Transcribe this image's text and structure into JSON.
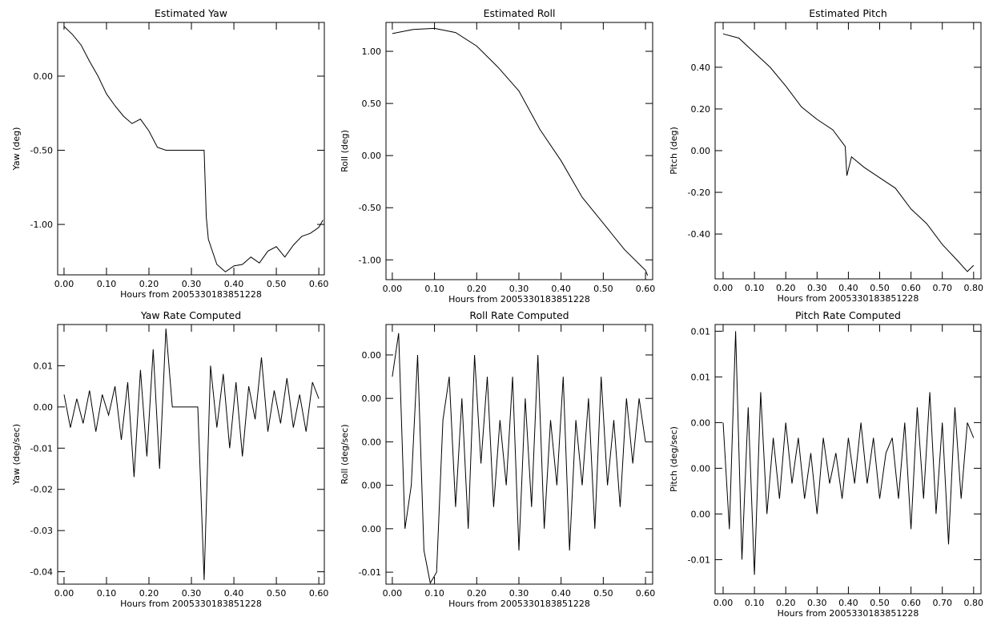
{
  "chart_data": [
    {
      "type": "line",
      "title": "Estimated Yaw",
      "x_label": "Hours from 2005330183851228",
      "y_label": "Yaw (deg)",
      "color": "#000000",
      "x": [
        0,
        0.02,
        0.04,
        0.06,
        0.08,
        0.1,
        0.12,
        0.14,
        0.16,
        0.18,
        0.2,
        0.22,
        0.24,
        0.26,
        0.3,
        0.33,
        0.335,
        0.34,
        0.36,
        0.38,
        0.4,
        0.42,
        0.44,
        0.46,
        0.48,
        0.5,
        0.52,
        0.54,
        0.56,
        0.58,
        0.6,
        0.61
      ],
      "values": [
        0.335,
        0.28,
        0.21,
        0.1,
        0.0,
        -0.12,
        -0.2,
        -0.27,
        -0.32,
        -0.29,
        -0.37,
        -0.48,
        -0.5,
        -0.5,
        -0.5,
        -0.5,
        -0.95,
        -1.1,
        -1.27,
        -1.32,
        -1.28,
        -1.27,
        -1.22,
        -1.26,
        -1.18,
        -1.15,
        -1.22,
        -1.14,
        -1.08,
        -1.06,
        -1.02,
        -0.97
      ],
      "xlim": [
        -0.015,
        0.613
      ],
      "ylim": [
        -1.34,
        0.362
      ],
      "xticks": [
        {
          "value": 0,
          "label": "0.00"
        },
        {
          "value": 0.1,
          "label": "0.10"
        },
        {
          "value": 0.2,
          "label": "0.20"
        },
        {
          "value": 0.3,
          "label": "0.30"
        },
        {
          "value": 0.4,
          "label": "0.40"
        },
        {
          "value": 0.5,
          "label": "0.50"
        },
        {
          "value": 0.6,
          "label": "0.60"
        }
      ],
      "yticks": [
        {
          "value": -1,
          "label": "-1.00"
        },
        {
          "value": -0.5,
          "label": "-0.50"
        },
        {
          "value": 0,
          "label": "0.00"
        }
      ]
    },
    {
      "type": "line",
      "title": "Estimated Roll",
      "x_label": "Hours from 2005330183851228",
      "y_label": "Roll (deg)",
      "color": "#000000",
      "x": [
        0,
        0.05,
        0.1,
        0.15,
        0.2,
        0.25,
        0.3,
        0.35,
        0.4,
        0.45,
        0.5,
        0.55,
        0.6,
        0.605
      ],
      "values": [
        1.17,
        1.21,
        1.22,
        1.18,
        1.05,
        0.85,
        0.62,
        0.25,
        -0.05,
        -0.4,
        -0.65,
        -0.9,
        -1.1,
        -1.15
      ],
      "xlim": [
        -0.015,
        0.617
      ],
      "ylim": [
        -1.19,
        1.277
      ],
      "xticks": [
        {
          "value": 0,
          "label": "0.00"
        },
        {
          "value": 0.1,
          "label": "0.10"
        },
        {
          "value": 0.2,
          "label": "0.20"
        },
        {
          "value": 0.3,
          "label": "0.30"
        },
        {
          "value": 0.4,
          "label": "0.40"
        },
        {
          "value": 0.5,
          "label": "0.50"
        },
        {
          "value": 0.6,
          "label": "0.60"
        }
      ],
      "yticks": [
        {
          "value": -1,
          "label": "-1.00"
        },
        {
          "value": -0.5,
          "label": "-0.50"
        },
        {
          "value": 0,
          "label": "0.00"
        },
        {
          "value": 0.5,
          "label": "0.50"
        },
        {
          "value": 1,
          "label": "1.00"
        }
      ]
    },
    {
      "type": "line",
      "title": "Estimated Pitch",
      "x_label": "Hours from 2005330183851228",
      "y_label": "Pitch (deg)",
      "color": "#000000",
      "x": [
        0,
        0.05,
        0.1,
        0.15,
        0.2,
        0.25,
        0.3,
        0.35,
        0.39,
        0.395,
        0.41,
        0.45,
        0.5,
        0.55,
        0.6,
        0.65,
        0.7,
        0.75,
        0.78,
        0.8
      ],
      "values": [
        0.56,
        0.54,
        0.47,
        0.4,
        0.31,
        0.21,
        0.15,
        0.1,
        0.02,
        -0.12,
        -0.03,
        -0.08,
        -0.13,
        -0.18,
        -0.28,
        -0.35,
        -0.45,
        -0.53,
        -0.58,
        -0.55
      ],
      "xlim": [
        -0.0256,
        0.8235
      ],
      "ylim": [
        -0.615,
        0.615
      ],
      "xticks": [
        {
          "value": 0,
          "label": "0.00"
        },
        {
          "value": 0.1,
          "label": "0.10"
        },
        {
          "value": 0.2,
          "label": "0.20"
        },
        {
          "value": 0.3,
          "label": "0.30"
        },
        {
          "value": 0.4,
          "label": "0.40"
        },
        {
          "value": 0.5,
          "label": "0.50"
        },
        {
          "value": 0.6,
          "label": "0.60"
        },
        {
          "value": 0.7,
          "label": "0.70"
        },
        {
          "value": 0.8,
          "label": "0.80"
        }
      ],
      "yticks": [
        {
          "value": -0.4,
          "label": "-0.40"
        },
        {
          "value": -0.2,
          "label": "-0.20"
        },
        {
          "value": 0,
          "label": "0.00"
        },
        {
          "value": 0.2,
          "label": "0.20"
        },
        {
          "value": 0.4,
          "label": "0.40"
        }
      ]
    },
    {
      "type": "line",
      "title": "Yaw Rate Computed",
      "x_label": "Hours from 2005330183851228",
      "y_label": "Yaw (deg/sec)",
      "color": "#000000",
      "x": [
        0,
        0.015,
        0.03,
        0.045,
        0.06,
        0.075,
        0.09,
        0.105,
        0.12,
        0.135,
        0.15,
        0.165,
        0.18,
        0.195,
        0.21,
        0.225,
        0.24,
        0.255,
        0.27,
        0.285,
        0.3,
        0.315,
        0.33,
        0.345,
        0.36,
        0.375,
        0.39,
        0.405,
        0.42,
        0.435,
        0.45,
        0.465,
        0.48,
        0.495,
        0.51,
        0.525,
        0.54,
        0.555,
        0.57,
        0.585,
        0.6
      ],
      "values": [
        0.003,
        -0.005,
        0.002,
        -0.004,
        0.004,
        -0.006,
        0.003,
        -0.002,
        0.005,
        -0.008,
        0.006,
        -0.017,
        0.009,
        -0.012,
        0.014,
        -0.015,
        0.019,
        0,
        0,
        0,
        0,
        0,
        -0.042,
        0.01,
        -0.005,
        0.008,
        -0.01,
        0.006,
        -0.012,
        0.005,
        -0.003,
        0.012,
        -0.006,
        0.004,
        -0.004,
        0.007,
        -0.005,
        0.003,
        -0.006,
        0.006,
        0.002
      ],
      "xlim": [
        -0.015,
        0.613
      ],
      "ylim": [
        -0.043,
        0.02
      ],
      "xticks": [
        {
          "value": 0,
          "label": "0.00"
        },
        {
          "value": 0.1,
          "label": "0.10"
        },
        {
          "value": 0.2,
          "label": "0.20"
        },
        {
          "value": 0.3,
          "label": "0.30"
        },
        {
          "value": 0.4,
          "label": "0.40"
        },
        {
          "value": 0.5,
          "label": "0.50"
        },
        {
          "value": 0.6,
          "label": "0.60"
        }
      ],
      "yticks": [
        {
          "value": -0.04,
          "label": "-0.04"
        },
        {
          "value": -0.03,
          "label": "-0.03"
        },
        {
          "value": -0.02,
          "label": "-0.02"
        },
        {
          "value": -0.01,
          "label": "-0.01"
        },
        {
          "value": 0,
          "label": "0.00"
        },
        {
          "value": 0.01,
          "label": "0.01"
        }
      ]
    },
    {
      "type": "line",
      "title": "Roll Rate Computed",
      "x_label": "Hours from 2005330183851228",
      "y_label": "Roll (deg/sec)",
      "color": "#000000",
      "x": [
        0,
        0.015,
        0.03,
        0.045,
        0.06,
        0.075,
        0.09,
        0.105,
        0.12,
        0.135,
        0.15,
        0.165,
        0.18,
        0.195,
        0.21,
        0.225,
        0.24,
        0.255,
        0.27,
        0.285,
        0.3,
        0.315,
        0.33,
        0.345,
        0.36,
        0.375,
        0.39,
        0.405,
        0.42,
        0.435,
        0.45,
        0.465,
        0.48,
        0.495,
        0.51,
        0.525,
        0.54,
        0.555,
        0.57,
        0.585,
        0.6
      ],
      "values": [
        0.003,
        0.005,
        -0.004,
        -0.002,
        0.004,
        -0.005,
        -0.0065,
        -0.006,
        0.001,
        0.003,
        -0.003,
        0.002,
        -0.004,
        0.004,
        -0.001,
        0.003,
        -0.003,
        0.001,
        -0.002,
        0.003,
        -0.005,
        0.002,
        -0.003,
        0.004,
        -0.004,
        0.001,
        -0.002,
        0.003,
        -0.005,
        0.001,
        -0.002,
        0.002,
        -0.004,
        0.003,
        -0.002,
        0.001,
        -0.003,
        0.002,
        -0.001,
        0.002,
        0.0
      ],
      "xlim": [
        -0.015,
        0.617
      ],
      "ylim": [
        -0.00655,
        0.0054
      ],
      "xticks": [
        {
          "value": 0,
          "label": "0.00"
        },
        {
          "value": 0.1,
          "label": "0.10"
        },
        {
          "value": 0.2,
          "label": "0.20"
        },
        {
          "value": 0.3,
          "label": "0.30"
        },
        {
          "value": 0.4,
          "label": "0.40"
        },
        {
          "value": 0.5,
          "label": "0.50"
        },
        {
          "value": 0.6,
          "label": "0.60"
        }
      ],
      "yticks": [
        {
          "value": -0.006,
          "label": "-0.01"
        },
        {
          "value": -0.004,
          "label": "0.00"
        },
        {
          "value": -0.002,
          "label": "0.00"
        },
        {
          "value": 0,
          "label": "0.00"
        },
        {
          "value": 0.002,
          "label": "0.00"
        },
        {
          "value": 0.004,
          "label": "0.00"
        }
      ]
    },
    {
      "type": "line",
      "title": "Pitch Rate Computed",
      "x_label": "Hours from 2005330183851228",
      "y_label": "Pitch (deg/sec)",
      "color": "#000000",
      "x": [
        0,
        0.02,
        0.04,
        0.06,
        0.08,
        0.1,
        0.12,
        0.14,
        0.16,
        0.18,
        0.2,
        0.22,
        0.24,
        0.26,
        0.28,
        0.3,
        0.32,
        0.34,
        0.36,
        0.38,
        0.4,
        0.42,
        0.44,
        0.46,
        0.48,
        0.5,
        0.52,
        0.54,
        0.56,
        0.58,
        0.6,
        0.62,
        0.64,
        0.66,
        0.68,
        0.7,
        0.72,
        0.74,
        0.76,
        0.78,
        0.8
      ],
      "values": [
        0.003,
        -0.004,
        0.009,
        -0.006,
        0.004,
        -0.007,
        0.005,
        -0.003,
        0.002,
        -0.002,
        0.003,
        -0.001,
        0.002,
        -0.002,
        0.001,
        -0.003,
        0.002,
        -0.001,
        0.001,
        -0.002,
        0.002,
        -0.001,
        0.003,
        -0.001,
        0.002,
        -0.002,
        0.001,
        0.002,
        -0.002,
        0.003,
        -0.004,
        0.004,
        -0.002,
        0.005,
        -0.003,
        0.003,
        -0.005,
        0.004,
        -0.002,
        0.003,
        0.002
      ],
      "xlim": [
        -0.0256,
        0.8235
      ],
      "ylim": [
        -0.00824,
        0.00944
      ],
      "xticks": [
        {
          "value": 0,
          "label": "0.00"
        },
        {
          "value": 0.1,
          "label": "0.10"
        },
        {
          "value": 0.2,
          "label": "0.20"
        },
        {
          "value": 0.3,
          "label": "0.30"
        },
        {
          "value": 0.4,
          "label": "0.40"
        },
        {
          "value": 0.5,
          "label": "0.50"
        },
        {
          "value": 0.6,
          "label": "0.60"
        },
        {
          "value": 0.7,
          "label": "0.70"
        },
        {
          "value": 0.8,
          "label": "0.80"
        }
      ],
      "yticks": [
        {
          "value": -0.006,
          "label": "-0.01"
        },
        {
          "value": -0.003,
          "label": "0.00"
        },
        {
          "value": 0,
          "label": "0.00"
        },
        {
          "value": 0.003,
          "label": "0.00"
        },
        {
          "value": 0.006,
          "label": "0.01"
        },
        {
          "value": 0.009,
          "label": "0.01"
        }
      ]
    }
  ]
}
